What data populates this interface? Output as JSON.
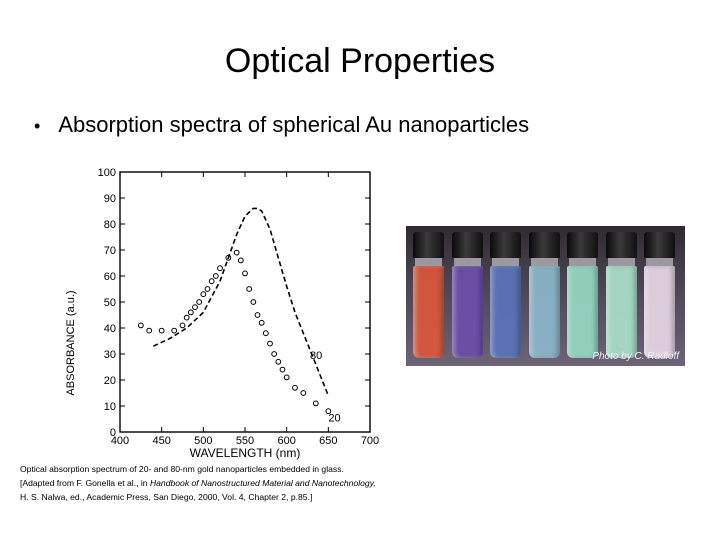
{
  "slide": {
    "title": "Optical Properties",
    "bullet": "Absorption spectra of spherical Au nanoparticles"
  },
  "photo": {
    "credit": "Photo by C. Radloff",
    "vial_colors": [
      "#d9573c",
      "#6b4fa8",
      "#5a73b8",
      "#8ab4c8",
      "#94d6c0",
      "#a8dcc8",
      "#e4d4e2"
    ]
  },
  "caption": {
    "line1": "Optical absorption spectrum of 20- and 80-nm gold nanoparticles embedded in glass.",
    "line2_prefix": "[Adapted from F. Gonella et al., in ",
    "line2_italic": "Handbook of Nanostructured Material and Nanotechnology,",
    "line3": "H. S. Nalwa, ed., Academic Press, San Diego, 2000, Vol. 4, Chapter 2, p.85.]"
  },
  "chart_data": {
    "type": "line",
    "xlabel": "WAVELENGTH (nm)",
    "ylabel": "ABSORBANCE (a.u.)",
    "xlim": [
      400,
      700
    ],
    "ylim": [
      0,
      100
    ],
    "xticks": [
      "400",
      "450",
      "500",
      "550",
      "600",
      "650",
      "700"
    ],
    "yticks": [
      "0",
      "10",
      "20",
      "30",
      "40",
      "50",
      "60",
      "70",
      "80",
      "90",
      "100"
    ],
    "grid": false,
    "series": [
      {
        "name": "80",
        "style": "dashed",
        "x": [
          440,
          460,
          480,
          500,
          520,
          540,
          550,
          560,
          565,
          570,
          580,
          590,
          600,
          610,
          620,
          630,
          640,
          650
        ],
        "y": [
          33,
          36,
          40,
          46,
          58,
          76,
          83,
          86,
          86,
          85,
          78,
          67,
          56,
          46,
          38,
          30,
          22,
          14
        ]
      },
      {
        "name": "20",
        "style": "circles",
        "x": [
          425,
          435,
          450,
          465,
          475,
          480,
          485,
          490,
          495,
          500,
          505,
          510,
          515,
          520,
          530,
          540,
          545,
          550,
          555,
          560,
          565,
          570,
          575,
          580,
          585,
          590,
          595,
          600,
          610,
          620,
          635,
          650
        ],
        "y": [
          41,
          39,
          39,
          39,
          41,
          44,
          46,
          48,
          50,
          53,
          55,
          58,
          60,
          63,
          67,
          69,
          66,
          61,
          55,
          50,
          45,
          42,
          38,
          34,
          30,
          27,
          24,
          21,
          17,
          15,
          11,
          8
        ]
      }
    ],
    "annotations": [
      "80",
      "20"
    ]
  }
}
